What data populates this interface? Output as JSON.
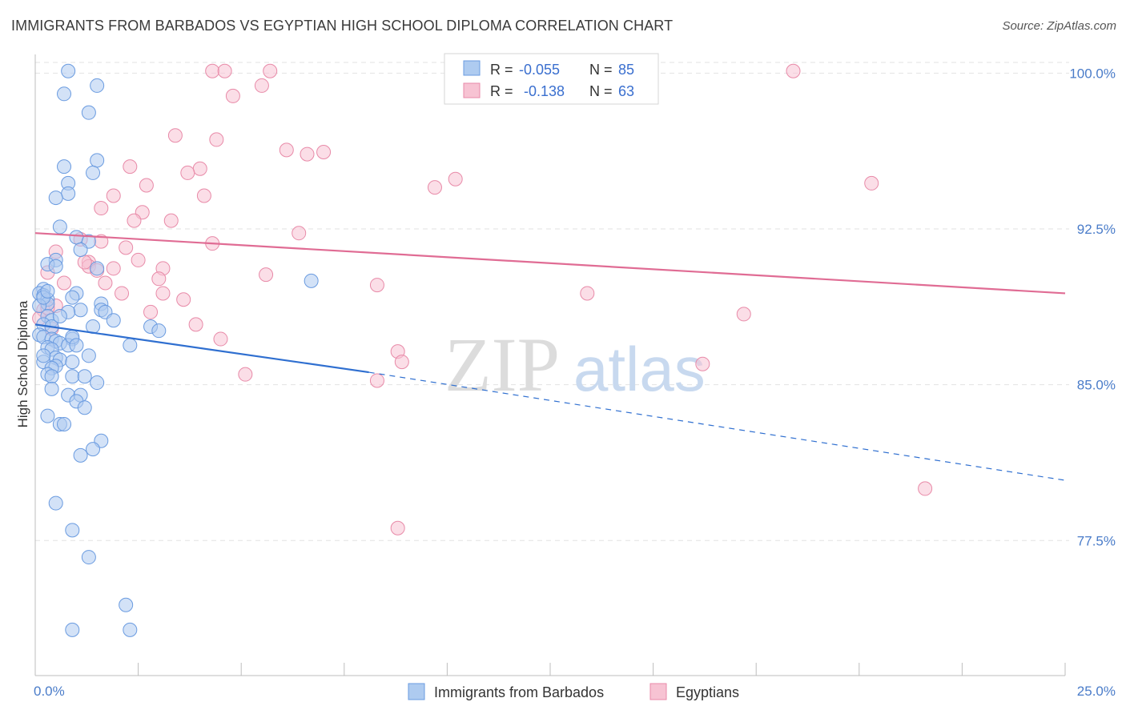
{
  "title": "IMMIGRANTS FROM BARBADOS VS EGYPTIAN HIGH SCHOOL DIPLOMA CORRELATION CHART",
  "source": "Source: ZipAtlas.com",
  "watermark": {
    "zip": "ZIP",
    "atlas": "atlas"
  },
  "colors": {
    "blue_fill": "#aecbf0",
    "blue_stroke": "#6a9be0",
    "blue_line": "#2f6fd0",
    "pink_fill": "#f7c3d3",
    "pink_stroke": "#e88aa8",
    "pink_line": "#e06c94",
    "tick_text": "#4a7cc9",
    "grid": "#e2e2e2"
  },
  "legend": {
    "rows": [
      {
        "r_label": "R =",
        "r_value": "-0.055",
        "n_label": "N =",
        "n_value": "85"
      },
      {
        "r_label": "R =",
        "r_value": "-0.138",
        "n_label": "N =",
        "n_value": "63"
      }
    ]
  },
  "bottom_legend": [
    "Immigrants from Barbados",
    "Egyptians"
  ],
  "chart_data": {
    "type": "scatter",
    "title": "IMMIGRANTS FROM BARBADOS VS EGYPTIAN HIGH SCHOOL DIPLOMA CORRELATION CHART",
    "xlabel": "",
    "ylabel": "High School Diploma",
    "xlim": [
      0,
      25
    ],
    "ylim": [
      71,
      100.9
    ],
    "x_tick_labels": [
      "0.0%",
      "25.0%"
    ],
    "y_ticks": [
      77.5,
      85.0,
      92.5,
      100.0
    ],
    "y_tick_labels": [
      "77.5%",
      "85.0%",
      "92.5%",
      "100.0%"
    ],
    "grid": true,
    "legend_position": "top-center",
    "series": [
      {
        "name": "Immigrants from Barbados",
        "R": -0.055,
        "N": 85,
        "trend": {
          "solid": [
            [
              0,
              87.9
            ],
            [
              8.1,
              85.6
            ]
          ],
          "dashed": [
            [
              8.1,
              85.6
            ],
            [
              25,
              80.4
            ]
          ]
        },
        "points": [
          [
            0.8,
            100.1
          ],
          [
            0.7,
            99.0
          ],
          [
            1.5,
            99.4
          ],
          [
            1.3,
            98.1
          ],
          [
            1.5,
            95.8
          ],
          [
            0.7,
            95.5
          ],
          [
            1.4,
            95.2
          ],
          [
            0.8,
            94.7
          ],
          [
            0.8,
            94.2
          ],
          [
            0.5,
            94.0
          ],
          [
            0.6,
            92.6
          ],
          [
            1.0,
            92.1
          ],
          [
            1.3,
            91.9
          ],
          [
            1.1,
            91.5
          ],
          [
            0.5,
            91.0
          ],
          [
            0.3,
            90.8
          ],
          [
            0.5,
            90.7
          ],
          [
            1.5,
            90.6
          ],
          [
            0.2,
            89.6
          ],
          [
            0.1,
            89.4
          ],
          [
            0.2,
            89.3
          ],
          [
            1.0,
            89.4
          ],
          [
            0.3,
            89.1
          ],
          [
            0.9,
            89.2
          ],
          [
            1.6,
            88.9
          ],
          [
            0.3,
            88.9
          ],
          [
            0.1,
            88.8
          ],
          [
            1.1,
            88.6
          ],
          [
            1.6,
            88.6
          ],
          [
            0.8,
            88.5
          ],
          [
            1.7,
            88.5
          ],
          [
            0.3,
            88.3
          ],
          [
            0.4,
            88.1
          ],
          [
            1.9,
            88.1
          ],
          [
            0.2,
            87.9
          ],
          [
            0.4,
            87.8
          ],
          [
            2.8,
            87.8
          ],
          [
            3.0,
            87.6
          ],
          [
            0.1,
            87.4
          ],
          [
            0.2,
            87.3
          ],
          [
            0.4,
            87.2
          ],
          [
            0.5,
            87.1
          ],
          [
            0.9,
            87.2
          ],
          [
            0.6,
            87.0
          ],
          [
            0.8,
            86.9
          ],
          [
            2.3,
            86.9
          ],
          [
            0.3,
            86.8
          ],
          [
            0.4,
            86.7
          ],
          [
            0.5,
            86.3
          ],
          [
            0.6,
            86.2
          ],
          [
            0.9,
            86.1
          ],
          [
            0.2,
            86.1
          ],
          [
            0.5,
            85.9
          ],
          [
            0.4,
            85.8
          ],
          [
            0.3,
            85.5
          ],
          [
            0.4,
            85.4
          ],
          [
            0.9,
            85.4
          ],
          [
            1.2,
            85.4
          ],
          [
            1.5,
            85.1
          ],
          [
            0.4,
            84.8
          ],
          [
            0.8,
            84.5
          ],
          [
            1.1,
            84.5
          ],
          [
            1.0,
            84.2
          ],
          [
            1.2,
            83.9
          ],
          [
            0.3,
            83.5
          ],
          [
            0.6,
            83.1
          ],
          [
            0.7,
            83.1
          ],
          [
            1.6,
            82.3
          ],
          [
            1.4,
            81.9
          ],
          [
            1.1,
            81.6
          ],
          [
            6.7,
            90.0
          ],
          [
            0.5,
            79.3
          ],
          [
            0.9,
            78.0
          ],
          [
            1.3,
            76.7
          ],
          [
            2.2,
            74.4
          ],
          [
            2.3,
            73.2
          ],
          [
            0.9,
            73.2
          ],
          [
            0.2,
            86.4
          ],
          [
            0.6,
            88.3
          ],
          [
            0.2,
            89.2
          ],
          [
            0.9,
            87.3
          ],
          [
            0.3,
            89.5
          ],
          [
            1.0,
            86.9
          ],
          [
            1.4,
            87.8
          ],
          [
            1.3,
            86.4
          ]
        ]
      },
      {
        "name": "Egyptians",
        "R": -0.138,
        "N": 63,
        "trend": {
          "solid": [
            [
              0,
              92.3
            ],
            [
              25,
              89.4
            ]
          ]
        },
        "points": [
          [
            4.3,
            100.1
          ],
          [
            4.6,
            100.1
          ],
          [
            5.7,
            100.1
          ],
          [
            18.4,
            100.1
          ],
          [
            5.5,
            99.4
          ],
          [
            4.8,
            98.9
          ],
          [
            3.4,
            97.0
          ],
          [
            4.4,
            96.8
          ],
          [
            6.1,
            96.3
          ],
          [
            7.0,
            96.2
          ],
          [
            6.6,
            96.1
          ],
          [
            2.3,
            95.5
          ],
          [
            4.0,
            95.4
          ],
          [
            3.7,
            95.2
          ],
          [
            10.2,
            94.9
          ],
          [
            9.7,
            94.5
          ],
          [
            20.3,
            94.7
          ],
          [
            2.7,
            94.6
          ],
          [
            1.9,
            94.1
          ],
          [
            4.1,
            94.1
          ],
          [
            1.6,
            93.5
          ],
          [
            2.6,
            93.3
          ],
          [
            2.4,
            92.9
          ],
          [
            3.3,
            92.9
          ],
          [
            6.4,
            92.3
          ],
          [
            1.1,
            92.0
          ],
          [
            1.6,
            91.9
          ],
          [
            4.3,
            91.8
          ],
          [
            2.2,
            91.6
          ],
          [
            0.5,
            91.4
          ],
          [
            2.5,
            91.0
          ],
          [
            1.3,
            90.9
          ],
          [
            1.3,
            90.7
          ],
          [
            1.9,
            90.6
          ],
          [
            3.1,
            90.6
          ],
          [
            1.5,
            90.5
          ],
          [
            0.3,
            90.4
          ],
          [
            5.6,
            90.3
          ],
          [
            3.0,
            90.1
          ],
          [
            0.7,
            89.9
          ],
          [
            1.7,
            89.9
          ],
          [
            8.3,
            89.8
          ],
          [
            2.1,
            89.4
          ],
          [
            3.1,
            89.4
          ],
          [
            13.4,
            89.4
          ],
          [
            3.6,
            89.1
          ],
          [
            0.2,
            88.6
          ],
          [
            2.8,
            88.5
          ],
          [
            0.1,
            88.2
          ],
          [
            17.2,
            88.4
          ],
          [
            3.9,
            87.9
          ],
          [
            0.4,
            87.7
          ],
          [
            4.5,
            87.2
          ],
          [
            8.8,
            86.6
          ],
          [
            8.9,
            86.1
          ],
          [
            16.2,
            86.0
          ],
          [
            5.1,
            85.5
          ],
          [
            8.3,
            85.2
          ],
          [
            21.6,
            80.0
          ],
          [
            8.8,
            78.1
          ],
          [
            0.5,
            88.8
          ],
          [
            1.2,
            90.9
          ],
          [
            0.3,
            88.7
          ]
        ]
      }
    ]
  }
}
